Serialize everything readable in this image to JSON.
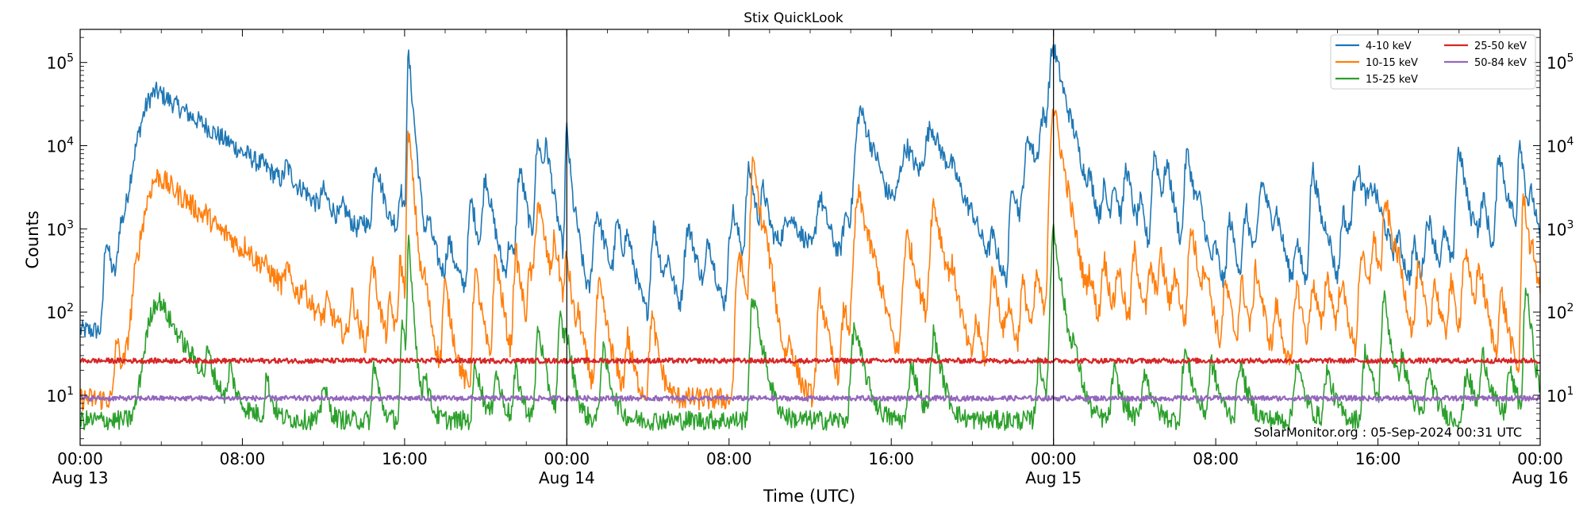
{
  "chart_data": {
    "type": "line",
    "title": "Stix QuickLook",
    "xlabel": "Time (UTC)",
    "ylabel": "Counts",
    "yscale": "log",
    "ylim": [
      2.5,
      250000
    ],
    "xlim_hours": [
      0,
      72
    ],
    "y_tick_exponents": [
      1,
      2,
      3,
      4,
      5
    ],
    "x_ticks": [
      {
        "hour": 0,
        "time": "00:00",
        "date": "Aug 13"
      },
      {
        "hour": 8,
        "time": "08:00",
        "date": ""
      },
      {
        "hour": 16,
        "time": "16:00",
        "date": ""
      },
      {
        "hour": 24,
        "time": "00:00",
        "date": "Aug 14"
      },
      {
        "hour": 32,
        "time": "08:00",
        "date": ""
      },
      {
        "hour": 40,
        "time": "16:00",
        "date": ""
      },
      {
        "hour": 48,
        "time": "00:00",
        "date": "Aug 15"
      },
      {
        "hour": 56,
        "time": "08:00",
        "date": ""
      },
      {
        "hour": 64,
        "time": "16:00",
        "date": ""
      },
      {
        "hour": 72,
        "time": "00:00",
        "date": "Aug 16"
      }
    ],
    "day_boundaries_hours": [
      24,
      48
    ],
    "credit": "SolarMonitor.org : 05-Sep-2024 00:31 UTC",
    "legend_position": "top-right",
    "series": [
      {
        "name": "4-10 keV",
        "color": "#1f77b4",
        "noise": 0.12,
        "baseline": 60,
        "flares": [
          [
            1.3,
            700,
            0.25
          ],
          [
            2.0,
            650,
            0.25
          ],
          [
            3.3,
            500,
            0.3
          ],
          [
            4.0,
            750,
            0.25
          ],
          [
            5.2,
            300,
            0.3
          ],
          [
            6.0,
            500,
            0.3
          ],
          [
            7.4,
            300,
            0.3
          ],
          [
            8.3,
            350,
            0.3
          ],
          [
            9.0,
            500,
            0.3
          ],
          [
            10.2,
            2500,
            0.3
          ],
          [
            11.0,
            400,
            0.3
          ],
          [
            12.0,
            1200,
            0.3
          ],
          [
            13.0,
            700,
            0.3
          ],
          [
            14.0,
            450,
            0.4
          ],
          [
            14.6,
            5500,
            0.35
          ],
          [
            15.5,
            350,
            0.3
          ],
          [
            15.8,
            2500,
            0.2
          ],
          [
            16.2,
            120000,
            0.15
          ],
          [
            17.2,
            900,
            0.3
          ],
          [
            18.2,
            500,
            0.3
          ],
          [
            19.3,
            2000,
            0.3
          ],
          [
            20.0,
            4000,
            0.3
          ],
          [
            21.2,
            500,
            0.3
          ],
          [
            21.7,
            5000,
            0.3
          ],
          [
            22.6,
            11000,
            0.3
          ],
          [
            23.0,
            7000,
            0.25
          ],
          [
            24.0,
            15000,
            0.15
          ],
          [
            24.5,
            600,
            0.3
          ],
          [
            25.5,
            1500,
            0.4
          ],
          [
            26.5,
            1000,
            0.3
          ],
          [
            27.0,
            600,
            0.3
          ],
          [
            28.3,
            1000,
            0.3
          ],
          [
            29.0,
            300,
            0.3
          ],
          [
            30.0,
            1000,
            0.4
          ],
          [
            31.0,
            600,
            0.3
          ],
          [
            32.2,
            1500,
            0.4
          ],
          [
            33.0,
            5000,
            0.3
          ],
          [
            33.7,
            2500,
            0.3
          ],
          [
            35.0,
            600,
            0.5
          ],
          [
            36.5,
            2000,
            0.4
          ],
          [
            37.8,
            1200,
            0.4
          ],
          [
            38.5,
            27000,
            0.5
          ],
          [
            39.3,
            1500,
            0.4
          ],
          [
            40.0,
            800,
            0.3
          ],
          [
            40.8,
            9000,
            0.8
          ],
          [
            41.8,
            800,
            0.3
          ],
          [
            42.0,
            14000,
            0.7
          ],
          [
            43.0,
            2000,
            0.5
          ],
          [
            44.0,
            300,
            0.4
          ],
          [
            45.0,
            500,
            0.3
          ],
          [
            46.0,
            3500,
            0.3
          ],
          [
            46.8,
            12000,
            0.5
          ],
          [
            47.5,
            20000,
            0.4
          ],
          [
            48.0,
            150000,
            0.4
          ],
          [
            49.0,
            3000,
            0.5
          ],
          [
            49.8,
            2000,
            0.3
          ],
          [
            50.5,
            2500,
            0.3
          ],
          [
            51.0,
            3000,
            0.3
          ],
          [
            51.6,
            5000,
            0.3
          ],
          [
            52.3,
            1500,
            0.3
          ],
          [
            53.0,
            8000,
            0.3
          ],
          [
            53.6,
            5000,
            0.3
          ],
          [
            54.6,
            8000,
            0.3
          ],
          [
            55.2,
            1200,
            0.3
          ],
          [
            56.0,
            400,
            0.3
          ],
          [
            56.7,
            1200,
            0.3
          ],
          [
            57.5,
            1500,
            0.3
          ],
          [
            58.3,
            3500,
            0.4
          ],
          [
            59.0,
            1000,
            0.3
          ],
          [
            60.0,
            600,
            0.3
          ],
          [
            60.8,
            5000,
            0.3
          ],
          [
            61.5,
            500,
            0.3
          ],
          [
            62.3,
            1500,
            0.3
          ],
          [
            63.0,
            5000,
            0.5
          ],
          [
            63.8,
            2000,
            0.5
          ],
          [
            65.0,
            500,
            0.3
          ],
          [
            65.8,
            500,
            0.3
          ],
          [
            66.5,
            1200,
            0.4
          ],
          [
            67.3,
            700,
            0.3
          ],
          [
            68.0,
            9000,
            0.3
          ],
          [
            68.8,
            700,
            0.3
          ],
          [
            69.2,
            2000,
            0.3
          ],
          [
            70.0,
            8000,
            0.3
          ],
          [
            70.6,
            700,
            0.3
          ],
          [
            71.0,
            12000,
            0.2
          ],
          [
            71.6,
            2000,
            0.3
          ]
        ],
        "decays": [
          [
            3.8,
            44000,
            0.6,
            2.5
          ],
          [
            35.0,
            800,
            0.5,
            2.0
          ]
        ]
      },
      {
        "name": "10-15 keV",
        "color": "#ff7f0e",
        "noise": 0.14,
        "baseline": 9,
        "flares": [
          [
            1.8,
            40,
            0.2
          ],
          [
            2.7,
            60,
            0.2
          ],
          [
            3.4,
            70,
            0.25
          ],
          [
            4.5,
            35,
            0.2
          ],
          [
            5.2,
            100,
            0.25
          ],
          [
            6.2,
            200,
            0.25
          ],
          [
            7.3,
            100,
            0.25
          ],
          [
            8.2,
            150,
            0.25
          ],
          [
            9.0,
            80,
            0.25
          ],
          [
            10.2,
            150,
            0.25
          ],
          [
            11.0,
            80,
            0.25
          ],
          [
            12.2,
            60,
            0.25
          ],
          [
            13.4,
            120,
            0.25
          ],
          [
            14.4,
            400,
            0.25
          ],
          [
            15.3,
            100,
            0.25
          ],
          [
            15.8,
            400,
            0.2
          ],
          [
            16.2,
            15000,
            0.15
          ],
          [
            17.0,
            200,
            0.25
          ],
          [
            18.0,
            200,
            0.25
          ],
          [
            19.5,
            300,
            0.25
          ],
          [
            20.5,
            450,
            0.25
          ],
          [
            21.5,
            500,
            0.25
          ],
          [
            22.2,
            300,
            0.25
          ],
          [
            22.6,
            2000,
            0.3
          ],
          [
            23.4,
            600,
            0.25
          ],
          [
            24.0,
            400,
            0.2
          ],
          [
            24.6,
            60,
            0.25
          ],
          [
            25.6,
            200,
            0.3
          ],
          [
            27.0,
            40,
            0.25
          ],
          [
            28.2,
            80,
            0.25
          ],
          [
            32.5,
            500,
            0.3
          ],
          [
            33.2,
            6000,
            0.25
          ],
          [
            33.8,
            400,
            0.25
          ],
          [
            35.0,
            30,
            0.3
          ],
          [
            36.5,
            150,
            0.3
          ],
          [
            37.7,
            100,
            0.3
          ],
          [
            38.4,
            2500,
            0.4
          ],
          [
            39.2,
            80,
            0.3
          ],
          [
            40.8,
            800,
            0.4
          ],
          [
            42.1,
            2000,
            0.35
          ],
          [
            43.0,
            200,
            0.3
          ],
          [
            44.2,
            60,
            0.3
          ],
          [
            45.0,
            300,
            0.3
          ],
          [
            45.8,
            100,
            0.3
          ],
          [
            46.5,
            200,
            0.3
          ],
          [
            47.2,
            250,
            0.3
          ],
          [
            48.0,
            30000,
            0.3
          ],
          [
            48.8,
            200,
            0.4
          ],
          [
            49.8,
            200,
            0.3
          ],
          [
            50.5,
            400,
            0.3
          ],
          [
            51.2,
            300,
            0.3
          ],
          [
            52.0,
            500,
            0.3
          ],
          [
            52.8,
            300,
            0.3
          ],
          [
            53.3,
            400,
            0.3
          ],
          [
            54.0,
            250,
            0.3
          ],
          [
            54.8,
            1000,
            0.3
          ],
          [
            55.5,
            250,
            0.3
          ],
          [
            56.5,
            200,
            0.3
          ],
          [
            57.3,
            200,
            0.3
          ],
          [
            58.0,
            300,
            0.3
          ],
          [
            59.0,
            100,
            0.3
          ],
          [
            60.0,
            200,
            0.3
          ],
          [
            60.8,
            200,
            0.3
          ],
          [
            61.5,
            250,
            0.3
          ],
          [
            62.2,
            200,
            0.3
          ],
          [
            63.2,
            500,
            0.3
          ],
          [
            63.8,
            700,
            0.3
          ],
          [
            64.4,
            2000,
            0.3
          ],
          [
            65.0,
            200,
            0.3
          ],
          [
            66.0,
            300,
            0.3
          ],
          [
            66.8,
            200,
            0.3
          ],
          [
            67.6,
            200,
            0.3
          ],
          [
            68.3,
            500,
            0.3
          ],
          [
            69.0,
            300,
            0.3
          ],
          [
            70.1,
            150,
            0.3
          ],
          [
            71.2,
            2500,
            0.2
          ],
          [
            71.7,
            300,
            0.3
          ]
        ],
        "decays": [
          [
            3.9,
            4200,
            0.5,
            2.0
          ]
        ]
      },
      {
        "name": "15-25 keV",
        "color": "#2ca02c",
        "noise": 0.12,
        "baseline": 5,
        "flares": [
          [
            4.0,
            15,
            0.2
          ],
          [
            6.3,
            20,
            0.2
          ],
          [
            7.4,
            15,
            0.2
          ],
          [
            9.2,
            12,
            0.2
          ],
          [
            12.0,
            10,
            0.2
          ],
          [
            14.5,
            20,
            0.2
          ],
          [
            15.9,
            60,
            0.2
          ],
          [
            16.2,
            800,
            0.12
          ],
          [
            17.0,
            15,
            0.2
          ],
          [
            19.5,
            20,
            0.25
          ],
          [
            20.5,
            15,
            0.25
          ],
          [
            21.5,
            15,
            0.25
          ],
          [
            22.6,
            60,
            0.25
          ],
          [
            23.7,
            80,
            0.25
          ],
          [
            24.0,
            30,
            0.2
          ],
          [
            25.8,
            30,
            0.3
          ],
          [
            33.2,
            150,
            0.3
          ],
          [
            38.2,
            60,
            0.35
          ],
          [
            41.0,
            20,
            0.3
          ],
          [
            42.1,
            50,
            0.3
          ],
          [
            47.3,
            20,
            0.3
          ],
          [
            48.0,
            1000,
            0.25
          ],
          [
            49.0,
            25,
            0.3
          ],
          [
            51.0,
            15,
            0.3
          ],
          [
            52.5,
            15,
            0.3
          ],
          [
            54.5,
            30,
            0.3
          ],
          [
            55.8,
            20,
            0.3
          ],
          [
            57.2,
            20,
            0.3
          ],
          [
            60.0,
            20,
            0.3
          ],
          [
            61.5,
            15,
            0.3
          ],
          [
            63.4,
            30,
            0.3
          ],
          [
            64.3,
            150,
            0.25
          ],
          [
            65.2,
            20,
            0.3
          ],
          [
            66.5,
            15,
            0.3
          ],
          [
            68.4,
            15,
            0.3
          ],
          [
            69.2,
            25,
            0.3
          ],
          [
            70.5,
            15,
            0.3
          ],
          [
            71.3,
            200,
            0.2
          ]
        ],
        "decays": [
          [
            3.85,
            130,
            0.4,
            1.0
          ]
        ]
      },
      {
        "name": "25-50 keV",
        "color": "#d62728",
        "noise": 0.03,
        "baseline": 26,
        "flares": [],
        "decays": []
      },
      {
        "name": "50-84 keV",
        "color": "#9467bd",
        "noise": 0.03,
        "baseline": 9.2,
        "flares": [],
        "decays": []
      }
    ]
  }
}
